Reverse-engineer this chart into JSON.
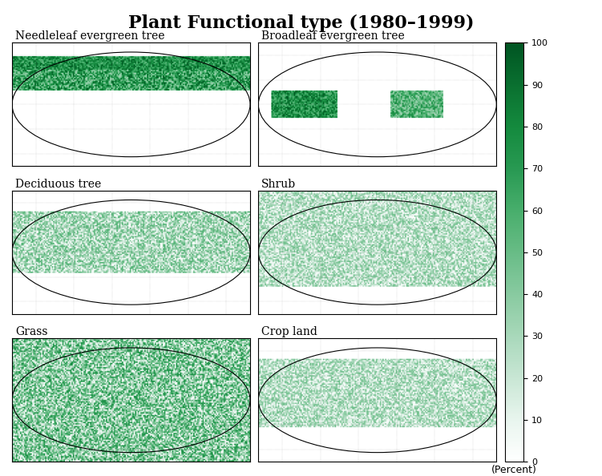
{
  "title": "Plant Functional type (1980–1999)",
  "title_fontsize": 16,
  "title_fontweight": "bold",
  "subplots": [
    {
      "label": "Needleleaf evergreen tree",
      "row": 0,
      "col": 0
    },
    {
      "label": "Broadleaf evergreen tree",
      "row": 0,
      "col": 1
    },
    {
      "label": "Deciduous tree",
      "row": 1,
      "col": 0
    },
    {
      "label": "Shrub",
      "row": 1,
      "col": 1
    },
    {
      "label": "Grass",
      "row": 2,
      "col": 0
    },
    {
      "label": "Crop land",
      "row": 2,
      "col": 1
    }
  ],
  "colorbar_ticks": [
    0,
    10,
    20,
    30,
    40,
    50,
    60,
    70,
    80,
    90,
    100
  ],
  "colorbar_label": "(Percent)",
  "cmap_colors": [
    "#ffffff",
    "#e8f5ee",
    "#c8e6d4",
    "#a8d8ba",
    "#88caa0",
    "#68bc86",
    "#48ae6c",
    "#289952",
    "#148a3e",
    "#0a7030",
    "#005522"
  ],
  "background_color": "#ffffff",
  "map_bg": "#ffffff",
  "label_fontsize": 10,
  "nrows": 3,
  "ncols": 2
}
